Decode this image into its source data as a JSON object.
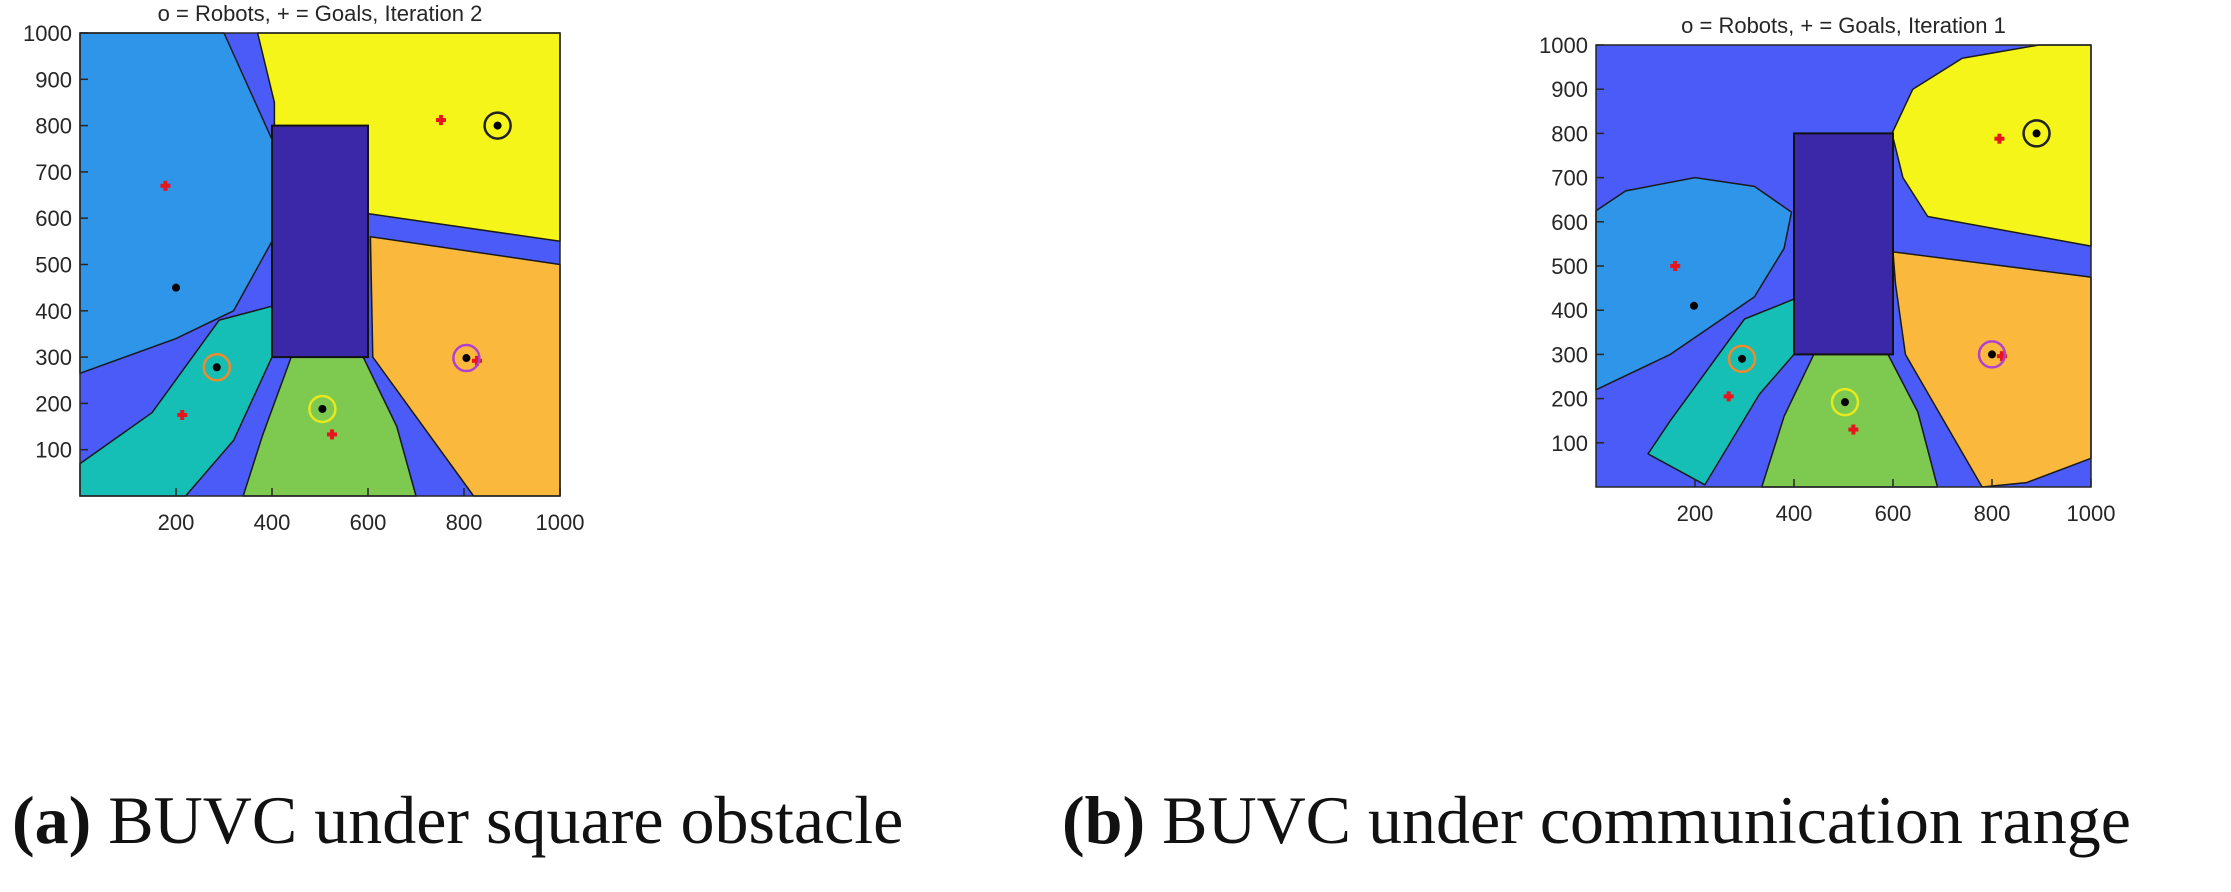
{
  "chart_data": [
    {
      "type": "voronoi-partition",
      "panel": "a",
      "title": "o = Robots, + = Goals, Iteration 2",
      "xlim": [
        0,
        1000
      ],
      "ylim": [
        0,
        1000
      ],
      "xticks": [
        200,
        400,
        600,
        800,
        1000
      ],
      "yticks": [
        100,
        200,
        300,
        400,
        500,
        600,
        700,
        800,
        900,
        1000
      ],
      "background_color": "#4a5bf7",
      "obstacle": {
        "x0": 400,
        "y0": 300,
        "x1": 600,
        "y1": 800,
        "color": "#3b28a8"
      },
      "regions": [
        {
          "color": "#2e95e8",
          "points": [
            [
              0,
              1000
            ],
            [
              300,
              1000
            ],
            [
              400,
              770
            ],
            [
              400,
              550
            ],
            [
              320,
              400
            ],
            [
              200,
              340
            ],
            [
              0,
              265
            ]
          ]
        },
        {
          "color": "#f5f51a",
          "points": [
            [
              370,
              1000
            ],
            [
              1000,
              1000
            ],
            [
              1000,
              550
            ],
            [
              600,
              610
            ],
            [
              600,
              800
            ],
            [
              405,
              800
            ],
            [
              405,
              850
            ]
          ]
        },
        {
          "color": "#fab93c",
          "points": [
            [
              605,
              560
            ],
            [
              1000,
              500
            ],
            [
              1000,
              0
            ],
            [
              820,
              0
            ],
            [
              610,
              300
            ]
          ]
        },
        {
          "color": "#15bfb5",
          "points": [
            [
              0,
              70
            ],
            [
              150,
              180
            ],
            [
              290,
              380
            ],
            [
              400,
              410
            ],
            [
              400,
              300
            ],
            [
              320,
              120
            ],
            [
              220,
              0
            ],
            [
              0,
              0
            ]
          ]
        },
        {
          "color": "#7ec94f",
          "points": [
            [
              340,
              0
            ],
            [
              700,
              0
            ],
            [
              660,
              150
            ],
            [
              590,
              300
            ],
            [
              440,
              300
            ],
            [
              380,
              130
            ]
          ]
        }
      ],
      "robots": [
        {
          "x": 870,
          "y": 800,
          "ring": "#222222"
        },
        {
          "x": 200,
          "y": 450,
          "ring": "#2e95e8"
        },
        {
          "x": 285,
          "y": 278,
          "ring": "#f08a2a"
        },
        {
          "x": 505,
          "y": 188,
          "ring": "#e8e820"
        },
        {
          "x": 805,
          "y": 298,
          "ring": "#b040d0"
        }
      ],
      "goals": [
        {
          "x": 178,
          "y": 670
        },
        {
          "x": 752,
          "y": 812
        },
        {
          "x": 213,
          "y": 175
        },
        {
          "x": 525,
          "y": 133
        },
        {
          "x": 827,
          "y": 292
        }
      ]
    },
    {
      "type": "voronoi-partition",
      "panel": "b",
      "title": "o = Robots, + = Goals, Iteration 1",
      "xlim": [
        0,
        1000
      ],
      "ylim": [
        0,
        1000
      ],
      "xticks": [
        200,
        400,
        600,
        800,
        1000
      ],
      "yticks": [
        100,
        200,
        300,
        400,
        500,
        600,
        700,
        800,
        900,
        1000
      ],
      "background_color": "#4a5bf7",
      "obstacle": {
        "x0": 400,
        "y0": 300,
        "x1": 600,
        "y1": 800,
        "color": "#3b28a8"
      },
      "regions": [
        {
          "color": "#f5f51a",
          "points": [
            [
              895,
              1000
            ],
            [
              1000,
              1000
            ],
            [
              1000,
              545
            ],
            [
              670,
              612
            ],
            [
              620,
              700
            ],
            [
              598,
              800
            ],
            [
              640,
              900
            ],
            [
              740,
              970
            ]
          ]
        },
        {
          "color": "#2e95e8",
          "points": [
            [
              0,
              625
            ],
            [
              60,
              670
            ],
            [
              200,
              700
            ],
            [
              320,
              680
            ],
            [
              395,
              622
            ],
            [
              380,
              540
            ],
            [
              320,
              430
            ],
            [
              150,
              300
            ],
            [
              0,
              220
            ]
          ]
        },
        {
          "color": "#15bfb5",
          "points": [
            [
              105,
              75
            ],
            [
              150,
              150
            ],
            [
              300,
              380
            ],
            [
              400,
              425
            ],
            [
              400,
              300
            ],
            [
              330,
              210
            ],
            [
              220,
              5
            ]
          ]
        },
        {
          "color": "#7ec94f",
          "points": [
            [
              335,
              0
            ],
            [
              690,
              0
            ],
            [
              650,
              170
            ],
            [
              590,
              300
            ],
            [
              440,
              300
            ],
            [
              380,
              160
            ]
          ]
        },
        {
          "color": "#fab93c",
          "points": [
            [
              600,
              532
            ],
            [
              1000,
              475
            ],
            [
              1000,
              65
            ],
            [
              870,
              10
            ],
            [
              780,
              0
            ],
            [
              625,
              300
            ],
            [
              605,
              460
            ]
          ]
        }
      ],
      "robots": [
        {
          "x": 890,
          "y": 800,
          "ring": "#222222"
        },
        {
          "x": 198,
          "y": 410,
          "ring": "#2e95e8"
        },
        {
          "x": 295,
          "y": 290,
          "ring": "#f08a2a"
        },
        {
          "x": 503,
          "y": 192,
          "ring": "#e8e820"
        },
        {
          "x": 800,
          "y": 300,
          "ring": "#b040d0"
        }
      ],
      "goals": [
        {
          "x": 160,
          "y": 500
        },
        {
          "x": 815,
          "y": 788
        },
        {
          "x": 268,
          "y": 205
        },
        {
          "x": 520,
          "y": 130
        },
        {
          "x": 820,
          "y": 296
        }
      ]
    }
  ],
  "captions": {
    "a": {
      "tag": "(a)",
      "text": "BUVC under square obstacle"
    },
    "b": {
      "tag": "(b)",
      "text": "BUVC under communication range"
    }
  }
}
